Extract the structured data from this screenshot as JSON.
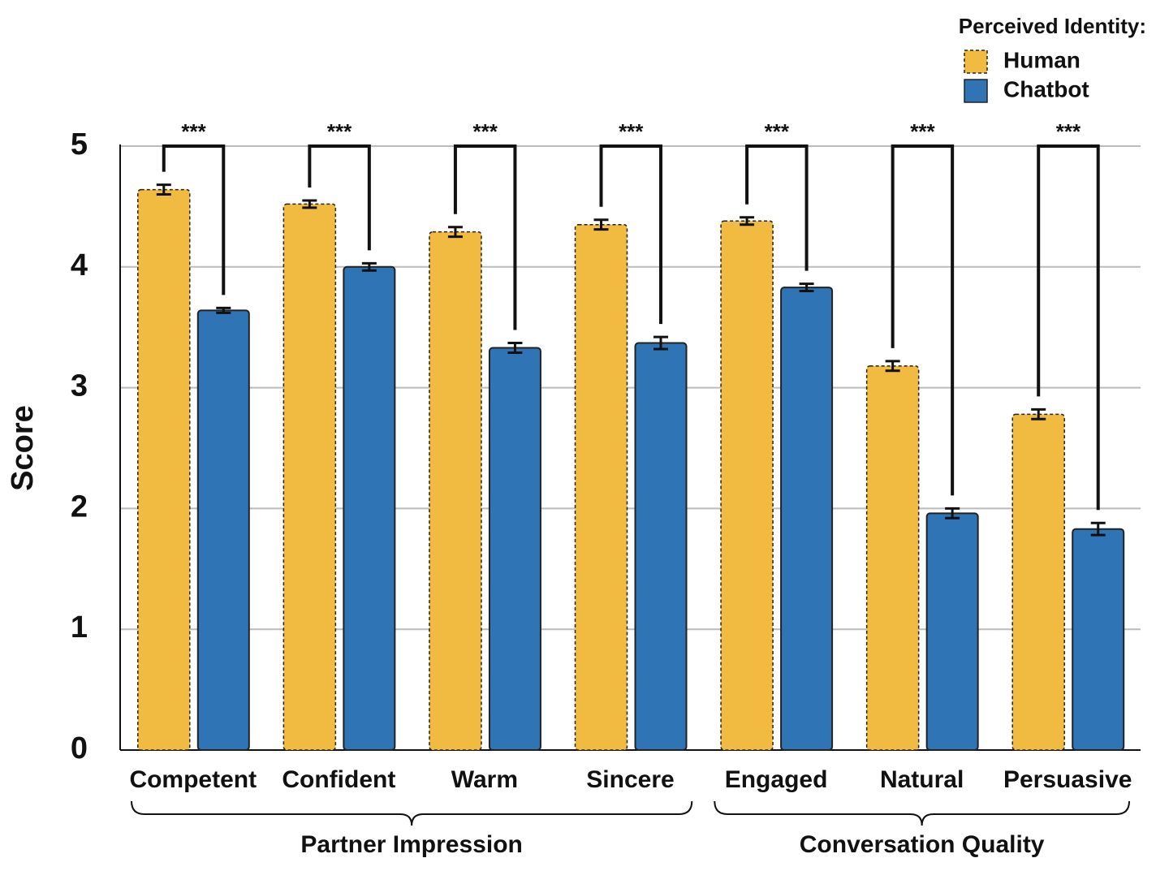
{
  "chart_data": {
    "type": "bar",
    "ylabel": "Score",
    "ylim": [
      0,
      5
    ],
    "yticks": [
      0,
      1,
      2,
      3,
      4,
      5
    ],
    "grid": true,
    "legend_title": "Perceived Identity:",
    "legend_position": "top-right",
    "groups": [
      {
        "name": "Partner Impression",
        "categories": [
          "Competent",
          "Confident",
          "Warm",
          "Sincere"
        ]
      },
      {
        "name": "Conversation Quality",
        "categories": [
          "Engaged",
          "Natural",
          "Persuasive"
        ]
      }
    ],
    "significance": [
      "***",
      "***",
      "***",
      "***",
      "***",
      "***",
      "***"
    ],
    "series": [
      {
        "name": "Human",
        "color": "#f0bb40",
        "values": [
          4.64,
          4.52,
          4.29,
          4.35,
          4.38,
          3.18,
          2.78
        ],
        "errors": [
          0.04,
          0.03,
          0.04,
          0.04,
          0.03,
          0.04,
          0.04
        ]
      },
      {
        "name": "Chatbot",
        "color": "#2f74b5",
        "values": [
          3.64,
          4.0,
          3.33,
          3.37,
          3.83,
          1.96,
          1.83
        ],
        "errors": [
          0.02,
          0.03,
          0.04,
          0.05,
          0.03,
          0.04,
          0.05
        ]
      }
    ]
  }
}
